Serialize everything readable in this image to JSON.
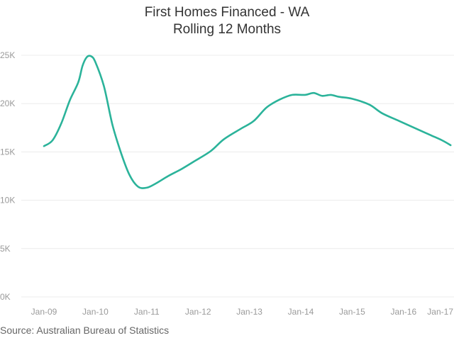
{
  "chart_data": {
    "type": "line",
    "title": "First Homes Financed - WA",
    "subtitle": "Rolling 12 Months",
    "ylim": [
      0,
      25000
    ],
    "y_ticks": [
      {
        "value": 0,
        "label": "0K"
      },
      {
        "value": 5000,
        "label": "5K"
      },
      {
        "value": 10000,
        "label": "10K"
      },
      {
        "value": 15000,
        "label": "15K"
      },
      {
        "value": 20000,
        "label": "20K"
      },
      {
        "value": 25000,
        "label": "25K"
      }
    ],
    "x_ticks": [
      "Jan-09",
      "Jan-10",
      "Jan-11",
      "Jan-12",
      "Jan-13",
      "Jan-14",
      "Jan-15",
      "Jan-16",
      "Jan-17"
    ],
    "grid": "horizontal",
    "line_color": "#2bb39a",
    "series": [
      {
        "values": [
          {
            "x": "2009-01",
            "y": 15600
          },
          {
            "x": "2009-03",
            "y": 16200
          },
          {
            "x": "2009-05",
            "y": 17900
          },
          {
            "x": "2009-07",
            "y": 20300
          },
          {
            "x": "2009-09",
            "y": 22200
          },
          {
            "x": "2009-10",
            "y": 23900
          },
          {
            "x": "2009-11",
            "y": 24800
          },
          {
            "x": "2009-12",
            "y": 24900
          },
          {
            "x": "2010-01",
            "y": 24300
          },
          {
            "x": "2010-03",
            "y": 21800
          },
          {
            "x": "2010-05",
            "y": 17800
          },
          {
            "x": "2010-07",
            "y": 14900
          },
          {
            "x": "2010-09",
            "y": 12600
          },
          {
            "x": "2010-11",
            "y": 11400
          },
          {
            "x": "2011-01",
            "y": 11300
          },
          {
            "x": "2011-03",
            "y": 11700
          },
          {
            "x": "2011-06",
            "y": 12500
          },
          {
            "x": "2011-09",
            "y": 13200
          },
          {
            "x": "2011-12",
            "y": 14000
          },
          {
            "x": "2012-04",
            "y": 15100
          },
          {
            "x": "2012-07",
            "y": 16300
          },
          {
            "x": "2012-11",
            "y": 17400
          },
          {
            "x": "2013-02",
            "y": 18200
          },
          {
            "x": "2013-05",
            "y": 19600
          },
          {
            "x": "2013-08",
            "y": 20400
          },
          {
            "x": "2013-11",
            "y": 20900
          },
          {
            "x": "2014-02",
            "y": 20900
          },
          {
            "x": "2014-04",
            "y": 21100
          },
          {
            "x": "2014-06",
            "y": 20800
          },
          {
            "x": "2014-08",
            "y": 20900
          },
          {
            "x": "2014-10",
            "y": 20700
          },
          {
            "x": "2015-01",
            "y": 20500
          },
          {
            "x": "2015-05",
            "y": 19900
          },
          {
            "x": "2015-08",
            "y": 19000
          },
          {
            "x": "2015-12",
            "y": 18200
          },
          {
            "x": "2016-04",
            "y": 17400
          },
          {
            "x": "2016-07",
            "y": 16800
          },
          {
            "x": "2016-10",
            "y": 16200
          },
          {
            "x": "2016-12",
            "y": 15700
          }
        ]
      }
    ]
  },
  "source_note": "Source: Australian Bureau of Statistics"
}
